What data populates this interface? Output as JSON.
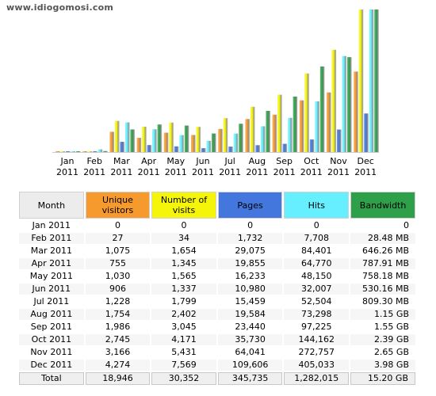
{
  "watermark": "www.idiogomosi.com",
  "colors": {
    "unique_visitors": "#f79a2e",
    "number_of_visits": "#f5f50a",
    "pages": "#4477dd",
    "hits": "#66f0ff",
    "bandwidth": "#2ea04a",
    "header_neutral": "#ececec"
  },
  "table": {
    "headers": {
      "month": "Month",
      "unique": "Unique visitors",
      "visits": "Number of visits",
      "pages": "Pages",
      "hits": "Hits",
      "bandwidth": "Bandwidth"
    },
    "rows": [
      {
        "month": "Jan 2011",
        "unique": "0",
        "visits": "0",
        "pages": "0",
        "hits": "0",
        "bandwidth": "0"
      },
      {
        "month": "Feb 2011",
        "unique": "27",
        "visits": "34",
        "pages": "1,732",
        "hits": "7,708",
        "bandwidth": "28.48 MB"
      },
      {
        "month": "Mar 2011",
        "unique": "1,075",
        "visits": "1,654",
        "pages": "29,075",
        "hits": "84,401",
        "bandwidth": "646.26 MB"
      },
      {
        "month": "Apr 2011",
        "unique": "755",
        "visits": "1,345",
        "pages": "19,855",
        "hits": "64,770",
        "bandwidth": "787.91 MB"
      },
      {
        "month": "May 2011",
        "unique": "1,030",
        "visits": "1,565",
        "pages": "16,233",
        "hits": "48,150",
        "bandwidth": "758.18 MB"
      },
      {
        "month": "Jun 2011",
        "unique": "906",
        "visits": "1,337",
        "pages": "10,980",
        "hits": "32,007",
        "bandwidth": "530.16 MB"
      },
      {
        "month": "Jul 2011",
        "unique": "1,228",
        "visits": "1,799",
        "pages": "15,459",
        "hits": "52,504",
        "bandwidth": "809.30 MB"
      },
      {
        "month": "Aug 2011",
        "unique": "1,754",
        "visits": "2,402",
        "pages": "19,584",
        "hits": "73,298",
        "bandwidth": "1.15 GB"
      },
      {
        "month": "Sep 2011",
        "unique": "1,986",
        "visits": "3,045",
        "pages": "23,440",
        "hits": "97,225",
        "bandwidth": "1.55 GB"
      },
      {
        "month": "Oct 2011",
        "unique": "2,745",
        "visits": "4,171",
        "pages": "35,730",
        "hits": "144,162",
        "bandwidth": "2.39 GB"
      },
      {
        "month": "Nov 2011",
        "unique": "3,166",
        "visits": "5,431",
        "pages": "64,041",
        "hits": "272,757",
        "bandwidth": "2.65 GB"
      },
      {
        "month": "Dec 2011",
        "unique": "4,274",
        "visits": "7,569",
        "pages": "109,606",
        "hits": "405,033",
        "bandwidth": "3.98 GB"
      }
    ],
    "total": {
      "month": "Total",
      "unique": "18,946",
      "visits": "30,352",
      "pages": "345,735",
      "hits": "1,282,015",
      "bandwidth": "15.20 GB"
    }
  },
  "chart_data": {
    "type": "bar",
    "categories": [
      "Jan 2011",
      "Feb 2011",
      "Mar 2011",
      "Apr 2011",
      "May 2011",
      "Jun 2011",
      "Jul 2011",
      "Aug 2011",
      "Sep 2011",
      "Oct 2011",
      "Nov 2011",
      "Dec 2011"
    ],
    "category_labels": [
      [
        "Jan",
        "2011"
      ],
      [
        "Feb",
        "2011"
      ],
      [
        "Mar",
        "2011"
      ],
      [
        "Apr",
        "2011"
      ],
      [
        "May",
        "2011"
      ],
      [
        "Jun",
        "2011"
      ],
      [
        "Jul",
        "2011"
      ],
      [
        "Aug",
        "2011"
      ],
      [
        "Sep",
        "2011"
      ],
      [
        "Oct",
        "2011"
      ],
      [
        "Nov",
        "2011"
      ],
      [
        "Dec",
        "2011"
      ]
    ],
    "series": [
      {
        "name": "Unique visitors",
        "color": "#f79a2e",
        "values": [
          0,
          27,
          1075,
          755,
          1030,
          906,
          1228,
          1754,
          1986,
          2745,
          3166,
          4274
        ]
      },
      {
        "name": "Number of visits",
        "color": "#f5f50a",
        "values": [
          0,
          34,
          1654,
          1345,
          1565,
          1337,
          1799,
          2402,
          3045,
          4171,
          5431,
          7569
        ]
      },
      {
        "name": "Pages",
        "color": "#4477dd",
        "values": [
          0,
          1732,
          29075,
          19855,
          16233,
          10980,
          15459,
          19584,
          23440,
          35730,
          64041,
          109606
        ]
      },
      {
        "name": "Hits",
        "color": "#66f0ff",
        "values": [
          0,
          7708,
          84401,
          64770,
          48150,
          32007,
          52504,
          73298,
          97225,
          144162,
          272757,
          405033
        ]
      },
      {
        "name": "Bandwidth",
        "color": "#2ea04a",
        "unit": "GB",
        "values": [
          0,
          0.0278,
          0.631,
          0.769,
          0.74,
          0.518,
          0.79,
          1.15,
          1.55,
          2.39,
          2.65,
          3.98
        ]
      }
    ],
    "scale_groups": [
      [
        "Unique visitors",
        "Number of visits"
      ],
      [
        "Pages",
        "Hits"
      ],
      [
        "Bandwidth"
      ]
    ],
    "grid": false,
    "legend": "none"
  }
}
